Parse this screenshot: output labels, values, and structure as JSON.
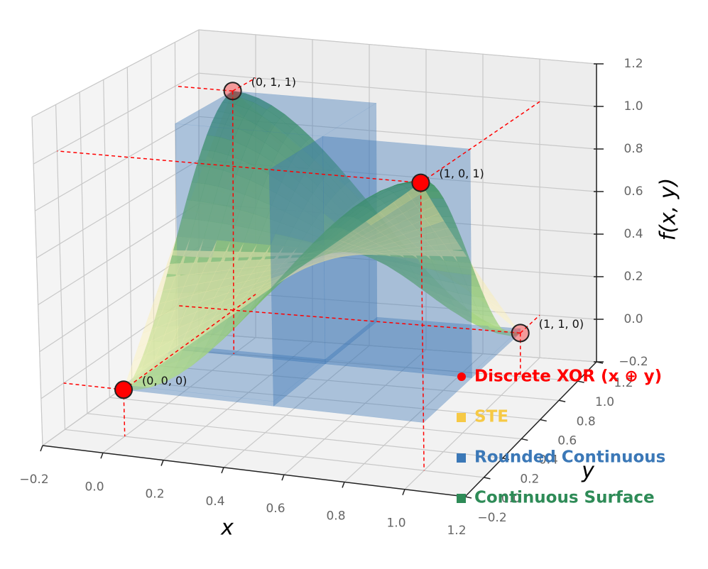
{
  "chart_data": {
    "type": "surface3d",
    "xlabel": "x",
    "ylabel": "y",
    "zlabel": "f(x, y)",
    "xlim": [
      -0.2,
      1.2
    ],
    "ylim": [
      -0.2,
      1.2
    ],
    "zlim": [
      -0.2,
      1.2
    ],
    "xticks": [
      {
        "value": -0.2,
        "label": "−0.2"
      },
      {
        "value": 0,
        "label": "0.0"
      },
      0.2,
      0.4,
      0.6,
      0.8,
      {
        "value": 1,
        "label": "1.0"
      },
      1.2
    ],
    "yticks": [
      {
        "value": -0.2,
        "label": "−0.2"
      },
      {
        "value": 0,
        "label": "0.0"
      },
      0.2,
      0.4,
      0.6,
      0.8,
      {
        "value": 1,
        "label": "1.0"
      },
      1.2
    ],
    "zticks": [
      {
        "value": -0.2,
        "label": "−0.2"
      },
      {
        "value": 0,
        "label": "0.0"
      },
      0.2,
      0.4,
      0.6,
      0.8,
      {
        "value": 1,
        "label": "1.0"
      },
      1.2
    ],
    "grid": true,
    "points": {
      "x": [
        0,
        0,
        1,
        1
      ],
      "y": [
        0,
        1,
        0,
        1
      ],
      "z": [
        0,
        1,
        1,
        0
      ],
      "labels": [
        "(0, 0, 0)",
        "(0, 1, 1)",
        "(1, 0, 1)",
        "(1, 1, 0)"
      ],
      "color": "#ff0000"
    },
    "series": [
      {
        "name": "Discrete XOR (x ⊕ y)",
        "color": "#ff0000"
      },
      {
        "name": "STE",
        "color": "#f6c945"
      },
      {
        "name": "Rounded Continuous",
        "color": "#3b78b7"
      },
      {
        "name": "Continuous Surface",
        "color": "#2e8b57"
      }
    ],
    "legend": "lower right"
  }
}
